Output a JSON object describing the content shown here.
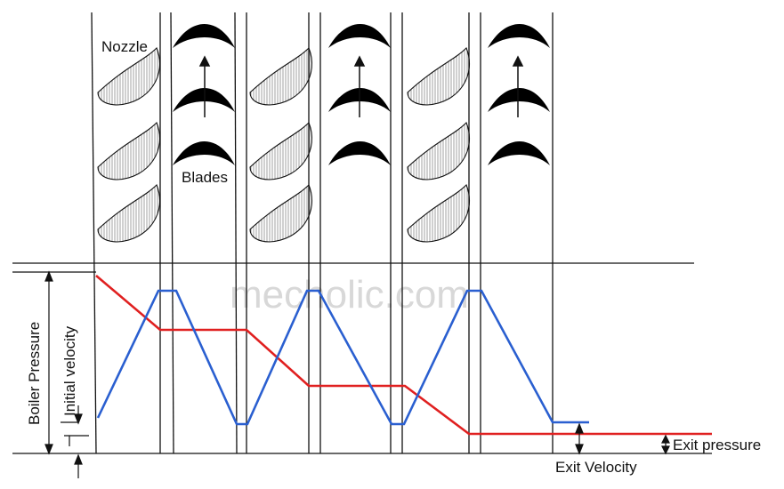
{
  "labels": {
    "nozzle": "Nozzle",
    "blades": "Blades",
    "boiler_pressure": "Boiler Pressure",
    "initial_velocity": "Initial velocity",
    "exit_pressure": "Exit pressure",
    "exit_velocity": "Exit Velocity",
    "watermark": "mecholic.com"
  },
  "colors": {
    "pressure_line": "#e02020",
    "velocity_line": "#2a5fd0",
    "structure": "#111111",
    "watermark": "#d8d8d8"
  },
  "stages": 3,
  "icons": {
    "nozzle": "nozzle-vane-icon",
    "blade": "turbine-blade-icon",
    "motion": "up-arrow-icon"
  }
}
